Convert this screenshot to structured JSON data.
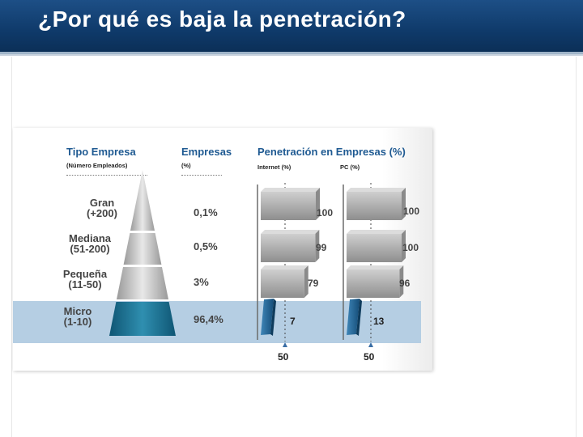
{
  "slide": {
    "title": "¿Por qué es baja la penetración?"
  },
  "headers": {
    "tipo": "Tipo Empresa",
    "tipo_sub": "(Número Empleados)",
    "empresas": "Empresas",
    "empresas_sub": "(%)",
    "penetracion": "Penetración en Empresas (%)",
    "internet_sub": "Internet (%)",
    "pc_sub": "PC (%)"
  },
  "colors": {
    "title_bar": "#0f3a6a",
    "header_text": "#1f5a92",
    "micro_band": "#b5cee3",
    "micro_bar": "#1e5e8c",
    "grey_bar": "#a8a8a8"
  },
  "chart_data": {
    "type": "bar",
    "categories": [
      "Gran (+200)",
      "Mediana (51-200)",
      "Pequeña (11-50)",
      "Micro (1-10)"
    ],
    "rows": [
      {
        "name": "Gran",
        "range": "(+200)",
        "empresas": "0,1%",
        "internet": 100,
        "pc": 100
      },
      {
        "name": "Mediana",
        "range": "(51-200)",
        "empresas": "0,5%",
        "internet": 99,
        "pc": 100
      },
      {
        "name": "Pequeña",
        "range": "(11-50)",
        "empresas": "3%",
        "internet": 79,
        "pc": 96
      },
      {
        "name": "Micro",
        "range": "(1-10)",
        "empresas": "96,4%",
        "internet": 7,
        "pc": 13
      }
    ],
    "series": [
      {
        "name": "Internet (%)",
        "values": [
          100,
          99,
          79,
          7
        ]
      },
      {
        "name": "PC (%)",
        "values": [
          100,
          100,
          96,
          13
        ]
      }
    ],
    "reference_lines": {
      "internet": "50",
      "pc": "50"
    },
    "xlim": [
      0,
      100
    ]
  }
}
